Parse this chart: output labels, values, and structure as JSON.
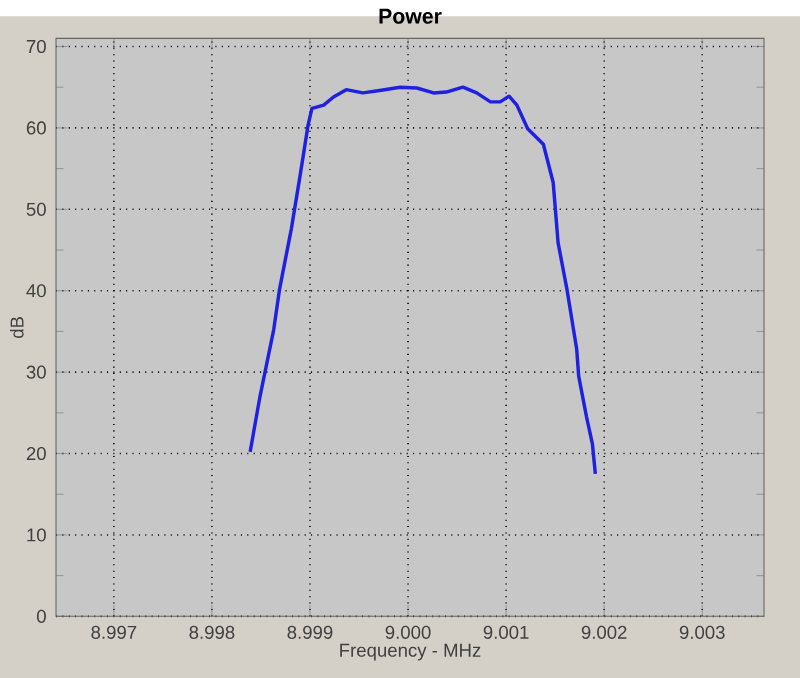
{
  "chart_data": {
    "type": "line",
    "title": "Power",
    "xlabel": "Frequency - MHz",
    "ylabel": "dB",
    "xlim": [
      8.99641,
      9.00363
    ],
    "ylim": [
      0,
      71
    ],
    "xticks": [
      {
        "value": 8.997,
        "label": "8.997"
      },
      {
        "value": 8.998,
        "label": "8.998"
      },
      {
        "value": 8.999,
        "label": "8.999"
      },
      {
        "value": 9.0,
        "label": "9.000"
      },
      {
        "value": 9.001,
        "label": "9.001"
      },
      {
        "value": 9.002,
        "label": "9.002"
      },
      {
        "value": 9.003,
        "label": "9.003"
      }
    ],
    "yticks": [
      0,
      10,
      20,
      30,
      40,
      50,
      60,
      70
    ],
    "grid": true,
    "marker": "none",
    "line_style": "solid",
    "series": [
      {
        "color": "#2020e0",
        "x": [
          8.99839,
          8.99849,
          8.99863,
          8.99869,
          8.99881,
          8.9989,
          8.99898,
          8.99902,
          8.99914,
          8.99924,
          8.99937,
          8.99954,
          8.99971,
          8.99992,
          9.00009,
          9.00026,
          9.00039,
          9.00056,
          9.0007,
          9.00084,
          9.00094,
          9.00103,
          9.00111,
          9.00122,
          9.00138,
          9.00148,
          9.00153,
          9.00162,
          9.00172,
          9.00174,
          9.00182,
          9.00188,
          9.00191
        ],
        "values": [
          20.2,
          27,
          35.2,
          40.2,
          47.6,
          54.2,
          60.3,
          62.4,
          62.8,
          63.8,
          64.7,
          64.3,
          64.6,
          65.0,
          64.9,
          64.3,
          64.4,
          65.0,
          64.3,
          63.2,
          63.2,
          63.9,
          62.8,
          59.9,
          58.0,
          53.3,
          45.9,
          40.2,
          32.8,
          29.5,
          24.5,
          21.2,
          17.5
        ]
      }
    ]
  }
}
